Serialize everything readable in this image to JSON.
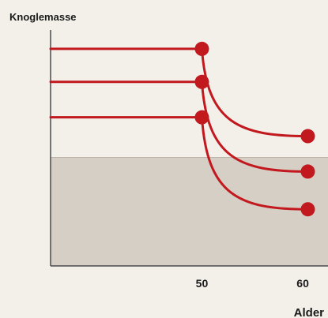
{
  "chart_data": {
    "type": "line",
    "title": "",
    "ylabel": "Knoglemasse",
    "xlabel": "Alder",
    "x_ticks": [
      50,
      60
    ],
    "xlim": [
      35,
      62.5
    ],
    "ylim": [
      0,
      100
    ],
    "grid": false,
    "shaded_band": {
      "y_from": 0,
      "y_to": 46,
      "color": "#d6cfc6"
    },
    "series": [
      {
        "plateau_start_x": 35,
        "start": [
          50,
          92
        ],
        "end": [
          60.5,
          55
        ]
      },
      {
        "plateau_start_x": 35,
        "start": [
          50,
          78
        ],
        "end": [
          60.5,
          40
        ]
      },
      {
        "plateau_start_x": 35,
        "start": [
          50,
          63
        ],
        "end": [
          60.5,
          24
        ]
      }
    ],
    "colors": {
      "line": "#c2191f",
      "marker": "#c2191f",
      "axis": "#4a4a4a",
      "background": "#f3f0ea"
    }
  }
}
